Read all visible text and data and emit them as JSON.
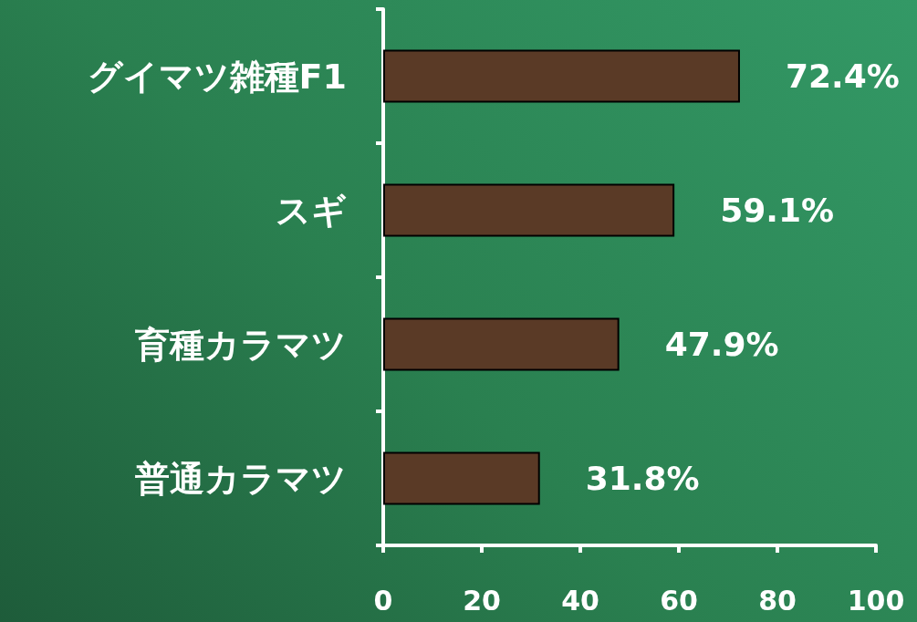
{
  "chart_data": {
    "type": "bar",
    "orientation": "horizontal",
    "categories": [
      "グイマツ雑種F1",
      "スギ",
      "育種カラマツ",
      "普通カラマツ"
    ],
    "values": [
      72.4,
      59.1,
      47.9,
      31.8
    ],
    "value_labels": [
      "72.4%",
      "59.1%",
      "47.9%",
      "31.8%"
    ],
    "color": "#5a3a26",
    "xlim": [
      0,
      100
    ],
    "xticks": [
      0,
      20,
      40,
      60,
      80,
      100
    ],
    "grid": false
  }
}
